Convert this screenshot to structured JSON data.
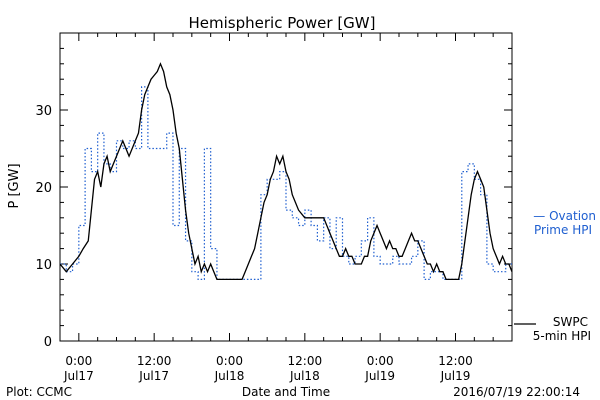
{
  "chart_data": {
    "type": "line",
    "title": "Hemispheric Power [GW]",
    "ylabel": "P [GW]",
    "xlabel": "Date and Time",
    "ylim": [
      0,
      40
    ],
    "xlim_hours": [
      -3,
      69
    ],
    "y_ticks": [
      0,
      10,
      20,
      30
    ],
    "x_ticks": [
      {
        "hour": 0,
        "time": "0:00",
        "date": "Jul17"
      },
      {
        "hour": 12,
        "time": "12:00",
        "date": "Jul17"
      },
      {
        "hour": 24,
        "time": "0:00",
        "date": "Jul18"
      },
      {
        "hour": 36,
        "time": "12:00",
        "date": "Jul18"
      },
      {
        "hour": 48,
        "time": "0:00",
        "date": "Jul19"
      },
      {
        "hour": 60,
        "time": "12:00",
        "date": "Jul19"
      }
    ],
    "series": [
      {
        "name": "Ovation Prime HPI",
        "legend_text": [
          "— Ovation",
          "Prime HPI"
        ],
        "color": "#1f5fd0",
        "style": "dotted",
        "step": true,
        "points": [
          [
            -3,
            10
          ],
          [
            -2,
            9
          ],
          [
            -1,
            10
          ],
          [
            0,
            15
          ],
          [
            1,
            25
          ],
          [
            2,
            22
          ],
          [
            3,
            27
          ],
          [
            4,
            23
          ],
          [
            5,
            22
          ],
          [
            6,
            26
          ],
          [
            7,
            25
          ],
          [
            8,
            26
          ],
          [
            9,
            25
          ],
          [
            10,
            33
          ],
          [
            11,
            25
          ],
          [
            12,
            25
          ],
          [
            13,
            25
          ],
          [
            14,
            27
          ],
          [
            15,
            15
          ],
          [
            16,
            25
          ],
          [
            17,
            13
          ],
          [
            18,
            9
          ],
          [
            19,
            8
          ],
          [
            20,
            25
          ],
          [
            21,
            12
          ],
          [
            22,
            8
          ],
          [
            23,
            8
          ],
          [
            24,
            8
          ],
          [
            25,
            8
          ],
          [
            26,
            8
          ],
          [
            27,
            8
          ],
          [
            28,
            8
          ],
          [
            29,
            19
          ],
          [
            30,
            21
          ],
          [
            31,
            21
          ],
          [
            32,
            22
          ],
          [
            33,
            17
          ],
          [
            34,
            16
          ],
          [
            35,
            15
          ],
          [
            36,
            17
          ],
          [
            37,
            15
          ],
          [
            38,
            13
          ],
          [
            39,
            16
          ],
          [
            40,
            12
          ],
          [
            41,
            16
          ],
          [
            42,
            11
          ],
          [
            43,
            10
          ],
          [
            44,
            11
          ],
          [
            45,
            13
          ],
          [
            46,
            16
          ],
          [
            47,
            11
          ],
          [
            48,
            10
          ],
          [
            49,
            10
          ],
          [
            50,
            11
          ],
          [
            51,
            10
          ],
          [
            52,
            10
          ],
          [
            53,
            11
          ],
          [
            54,
            13
          ],
          [
            55,
            8
          ],
          [
            56,
            9
          ],
          [
            57,
            9
          ],
          [
            58,
            8
          ],
          [
            59,
            8
          ],
          [
            60,
            8
          ],
          [
            61,
            22
          ],
          [
            62,
            23
          ],
          [
            63,
            21
          ],
          [
            64,
            19
          ],
          [
            65,
            10
          ],
          [
            66,
            9
          ],
          [
            67,
            9
          ],
          [
            68,
            10
          ],
          [
            69,
            10
          ]
        ]
      },
      {
        "name": "SWPC 5-min HPI",
        "legend_text": [
          "SWPC",
          "5-min HPI"
        ],
        "color": "#000000",
        "style": "solid",
        "step": false,
        "points": [
          [
            -3,
            10
          ],
          [
            -2,
            9
          ],
          [
            -1,
            10
          ],
          [
            0,
            11
          ],
          [
            0.7,
            12
          ],
          [
            1.5,
            13
          ],
          [
            2,
            17
          ],
          [
            2.5,
            21
          ],
          [
            3,
            22
          ],
          [
            3.5,
            20
          ],
          [
            4,
            23
          ],
          [
            4.5,
            24
          ],
          [
            5,
            22
          ],
          [
            5.5,
            23
          ],
          [
            6,
            24
          ],
          [
            6.5,
            25
          ],
          [
            7,
            26
          ],
          [
            7.5,
            25
          ],
          [
            8,
            24
          ],
          [
            8.5,
            25
          ],
          [
            9,
            26
          ],
          [
            9.5,
            27
          ],
          [
            10,
            30
          ],
          [
            10.5,
            32
          ],
          [
            11,
            33
          ],
          [
            11.5,
            34
          ],
          [
            12,
            34.5
          ],
          [
            12.5,
            35
          ],
          [
            13,
            36
          ],
          [
            13.5,
            35
          ],
          [
            14,
            33
          ],
          [
            14.5,
            32
          ],
          [
            15,
            30
          ],
          [
            15.5,
            27
          ],
          [
            16,
            25
          ],
          [
            16.5,
            21
          ],
          [
            17,
            17
          ],
          [
            17.5,
            14
          ],
          [
            18,
            12
          ],
          [
            18.5,
            10
          ],
          [
            19,
            11
          ],
          [
            19.5,
            9
          ],
          [
            20,
            10
          ],
          [
            20.5,
            9
          ],
          [
            21,
            10
          ],
          [
            21.5,
            9
          ],
          [
            22,
            8
          ],
          [
            23,
            8
          ],
          [
            24,
            8
          ],
          [
            25,
            8
          ],
          [
            26,
            8
          ],
          [
            26.5,
            9
          ],
          [
            27,
            10
          ],
          [
            27.5,
            11
          ],
          [
            28,
            12
          ],
          [
            28.5,
            14
          ],
          [
            29,
            16
          ],
          [
            29.5,
            18
          ],
          [
            30,
            19
          ],
          [
            30.5,
            21
          ],
          [
            31,
            22
          ],
          [
            31.5,
            24
          ],
          [
            32,
            23
          ],
          [
            32.5,
            24
          ],
          [
            33,
            22
          ],
          [
            33.5,
            21
          ],
          [
            34,
            19
          ],
          [
            34.5,
            18
          ],
          [
            35,
            17
          ],
          [
            36,
            16
          ],
          [
            37,
            16
          ],
          [
            38,
            16
          ],
          [
            39,
            16
          ],
          [
            39.5,
            15
          ],
          [
            40,
            14
          ],
          [
            40.5,
            13
          ],
          [
            41,
            12
          ],
          [
            41.5,
            11
          ],
          [
            42,
            11
          ],
          [
            42.5,
            12
          ],
          [
            43,
            11
          ],
          [
            43.5,
            11
          ],
          [
            44,
            10
          ],
          [
            45,
            10
          ],
          [
            45.5,
            11
          ],
          [
            46,
            11
          ],
          [
            46.5,
            13
          ],
          [
            47,
            14
          ],
          [
            47.5,
            15
          ],
          [
            48,
            14
          ],
          [
            48.5,
            13
          ],
          [
            49,
            12
          ],
          [
            49.5,
            13
          ],
          [
            50,
            12
          ],
          [
            50.5,
            12
          ],
          [
            51,
            11
          ],
          [
            51.5,
            11
          ],
          [
            52,
            12
          ],
          [
            52.5,
            13
          ],
          [
            53,
            14
          ],
          [
            53.5,
            13
          ],
          [
            54,
            13
          ],
          [
            54.5,
            12
          ],
          [
            55,
            11
          ],
          [
            55.5,
            10
          ],
          [
            56,
            10
          ],
          [
            56.5,
            9
          ],
          [
            57,
            10
          ],
          [
            57.5,
            9
          ],
          [
            58,
            9
          ],
          [
            58.5,
            8
          ],
          [
            59,
            8
          ],
          [
            59.5,
            8
          ],
          [
            60,
            8
          ],
          [
            60.5,
            8
          ],
          [
            61,
            10
          ],
          [
            61.5,
            13
          ],
          [
            62,
            16
          ],
          [
            62.5,
            19
          ],
          [
            63,
            21
          ],
          [
            63.5,
            22
          ],
          [
            64,
            21
          ],
          [
            64.5,
            20
          ],
          [
            65,
            17
          ],
          [
            65.5,
            14
          ],
          [
            66,
            12
          ],
          [
            66.5,
            11
          ],
          [
            67,
            10
          ],
          [
            67.5,
            11
          ],
          [
            68,
            10
          ],
          [
            68.5,
            10
          ],
          [
            69,
            9
          ]
        ]
      }
    ],
    "footer": {
      "left": "Plot: CCMC",
      "right": "2016/07/19 22:00:14"
    }
  }
}
